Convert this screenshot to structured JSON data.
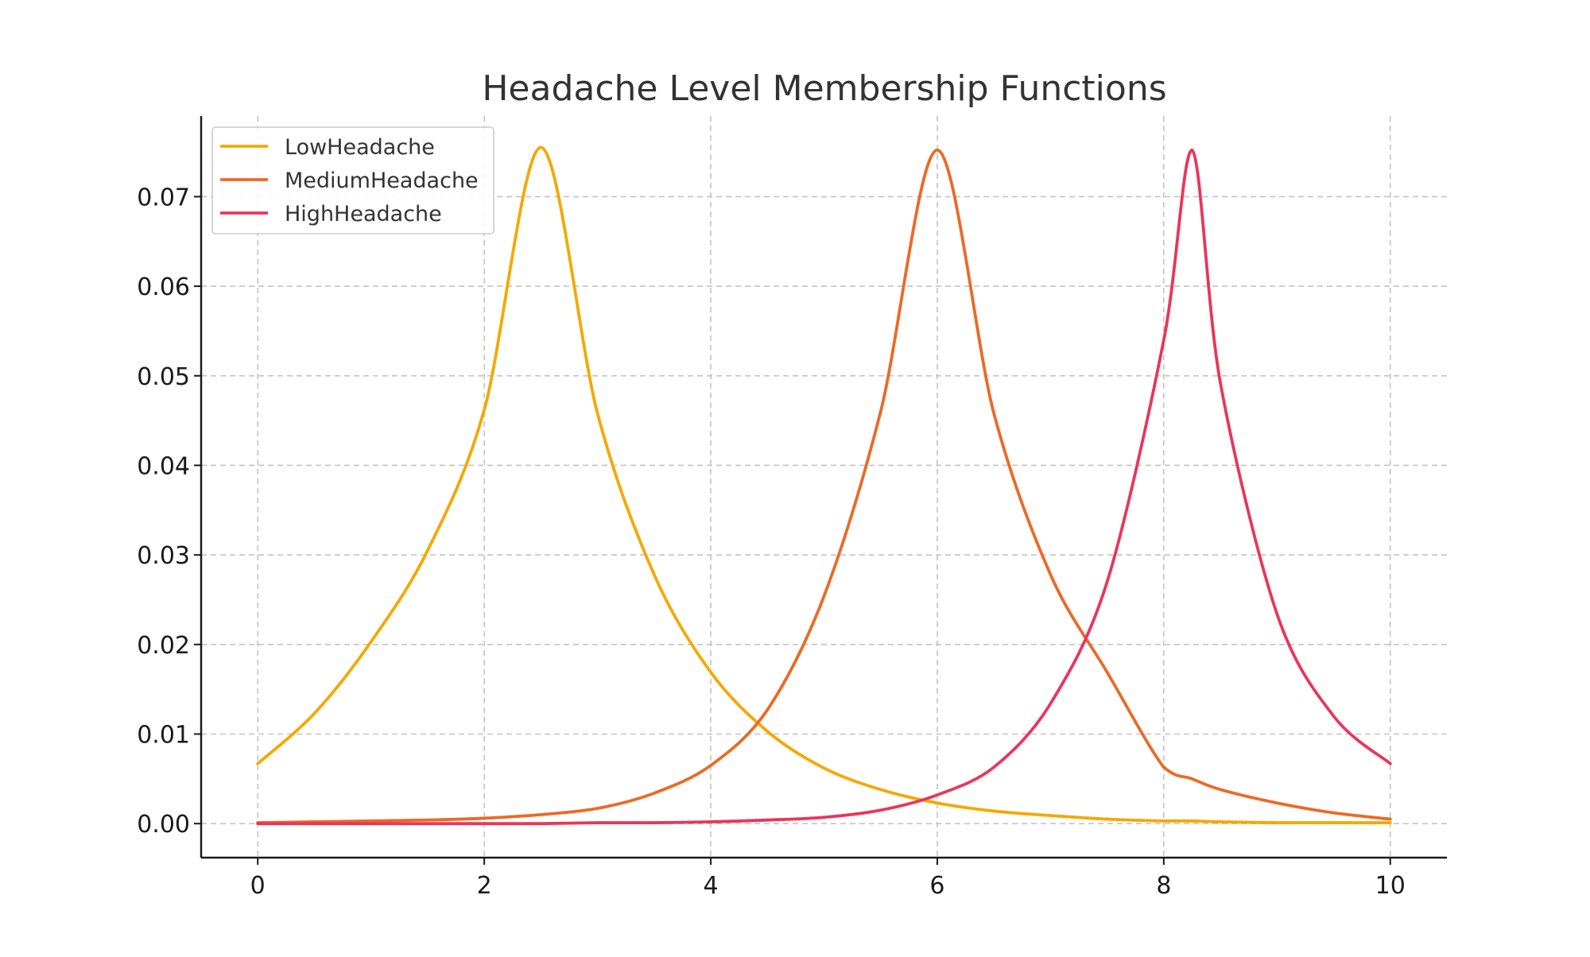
{
  "chart_data": {
    "type": "line",
    "title": "Headache Level Membership Functions",
    "xlabel": "",
    "ylabel": "",
    "xlim": [
      -0.5,
      10.5
    ],
    "ylim": [
      -0.0038,
      0.079
    ],
    "xticks": [
      0,
      2,
      4,
      6,
      8,
      10
    ],
    "xtick_labels": [
      "0",
      "2",
      "4",
      "6",
      "8",
      "10"
    ],
    "yticks": [
      0.0,
      0.01,
      0.02,
      0.03,
      0.04,
      0.05,
      0.06,
      0.07
    ],
    "ytick_labels": [
      "0.00",
      "0.01",
      "0.02",
      "0.03",
      "0.04",
      "0.05",
      "0.06",
      "0.07"
    ],
    "grid": true,
    "legend_position": "top-left",
    "x": [
      0,
      0.5,
      1,
      1.5,
      2,
      2.5,
      3,
      3.5,
      4,
      4.5,
      5,
      5.5,
      6,
      6.5,
      7,
      7.5,
      8,
      8.25,
      8.5,
      9,
      9.5,
      10
    ],
    "series": [
      {
        "name": "LowHeadache",
        "color": "#f5a800",
        "values": [
          0.0067,
          0.0123,
          0.0203,
          0.0305,
          0.0462,
          0.0755,
          0.0458,
          0.0278,
          0.0169,
          0.0103,
          0.0062,
          0.0038,
          0.0023,
          0.0014,
          0.0009,
          0.0005,
          0.0003,
          0.0003,
          0.0002,
          0.0001,
          0.0001,
          0.0001
        ]
      },
      {
        "name": "MediumHeadache",
        "color": "#eb6a26",
        "values": [
          0.0001,
          0.0002,
          0.0003,
          0.0004,
          0.0006,
          0.001,
          0.0017,
          0.0034,
          0.0065,
          0.0127,
          0.0254,
          0.046,
          0.0752,
          0.0458,
          0.0278,
          0.0169,
          0.0063,
          0.005,
          0.0038,
          0.0023,
          0.0012,
          0.0005
        ]
      },
      {
        "name": "HighHeadache",
        "color": "#e9365a",
        "values": [
          0.0,
          0.0,
          0.0,
          0.0,
          0.0,
          0.0,
          0.0001,
          0.0001,
          0.0002,
          0.0004,
          0.0007,
          0.0015,
          0.0032,
          0.0063,
          0.0134,
          0.027,
          0.054,
          0.0752,
          0.0492,
          0.0234,
          0.012,
          0.0067
        ]
      }
    ]
  }
}
